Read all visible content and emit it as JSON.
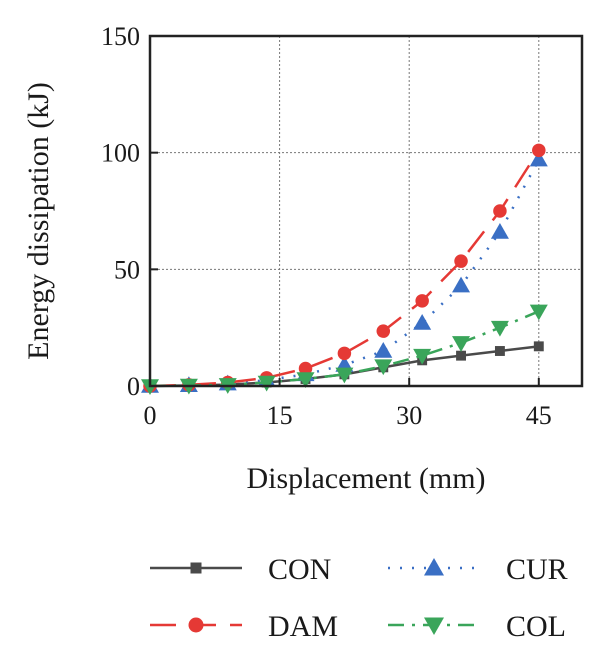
{
  "chart_data": {
    "type": "line",
    "xlabel": "Displacement (mm)",
    "ylabel": "Energy dissipation (kJ)",
    "xlim": [
      0,
      50
    ],
    "ylim": [
      0,
      150
    ],
    "xticks": [
      0,
      15,
      30,
      45
    ],
    "yticks": [
      0,
      50,
      100,
      150
    ],
    "grid": true,
    "legend_position": "bottom",
    "series": [
      {
        "name": "CON",
        "color": "#4a4a4a",
        "marker": "square",
        "dash": "solid",
        "x": [
          0,
          4.5,
          9,
          13.5,
          18,
          22.5,
          27,
          31.5,
          36,
          40.5,
          45
        ],
        "y": [
          0,
          0.2,
          0.6,
          1.5,
          3,
          5,
          8,
          11,
          13,
          15,
          17
        ]
      },
      {
        "name": "CUR",
        "color": "#3a6fc4",
        "marker": "triangle-up",
        "dash": "dotted",
        "x": [
          0,
          4.5,
          9,
          13.5,
          18,
          22.5,
          27,
          31.5,
          36,
          40.5,
          45
        ],
        "y": [
          0,
          0.3,
          1,
          2.5,
          5,
          9,
          15,
          27,
          43,
          66,
          97
        ]
      },
      {
        "name": "DAM",
        "color": "#e53935",
        "marker": "circle",
        "dash": "dashed",
        "x": [
          0,
          4.5,
          9,
          13.5,
          18,
          22.5,
          27,
          31.5,
          36,
          40.5,
          45
        ],
        "y": [
          0,
          0.5,
          1.5,
          3.5,
          7.5,
          14,
          23.5,
          36.5,
          53.5,
          75,
          101
        ]
      },
      {
        "name": "COL",
        "color": "#3aa55a",
        "marker": "triangle-down",
        "dash": "dashdot",
        "x": [
          0,
          4.5,
          9,
          13.5,
          18,
          22.5,
          27,
          31.5,
          36,
          40.5,
          45
        ],
        "y": [
          0,
          0.2,
          0.5,
          1.5,
          3,
          5,
          8.5,
          13,
          18.5,
          25,
          32
        ]
      }
    ]
  }
}
